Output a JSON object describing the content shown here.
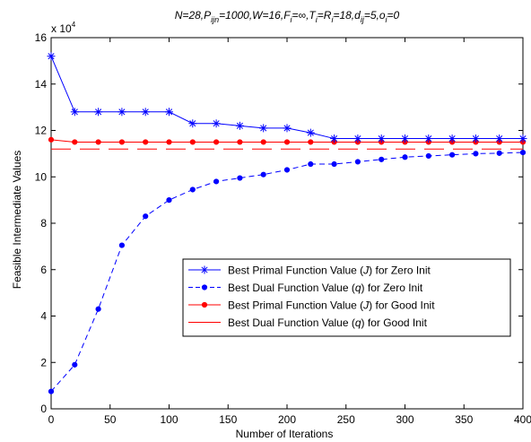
{
  "chart_data": {
    "type": "line",
    "title": "N=28,P_ijn=1000,W=16,F_i=∞,T_i=R_i=18,d_ij=5,o_i=0",
    "title_parts": [
      {
        "t": "N=28,P",
        "sub": false
      },
      {
        "t": "ijn",
        "sub": true
      },
      {
        "t": "=1000,W=16,F",
        "sub": false
      },
      {
        "t": "i",
        "sub": true
      },
      {
        "t": "=∞,T",
        "sub": false
      },
      {
        "t": "i",
        "sub": true
      },
      {
        "t": "=R",
        "sub": false
      },
      {
        "t": "i",
        "sub": true
      },
      {
        "t": "=18,d",
        "sub": false
      },
      {
        "t": "ij",
        "sub": true
      },
      {
        "t": "=5,o",
        "sub": false
      },
      {
        "t": "i",
        "sub": true
      },
      {
        "t": "=0",
        "sub": false
      }
    ],
    "xlabel": "Number of Iterations",
    "ylabel": "Feasible Intermediate Values",
    "y_multiplier": {
      "base": "x 10",
      "exponent": "4"
    },
    "xlim": [
      0,
      400
    ],
    "ylim": [
      0,
      16
    ],
    "xticks": [
      0,
      50,
      100,
      150,
      200,
      250,
      300,
      350,
      400
    ],
    "yticks": [
      0,
      2,
      4,
      6,
      8,
      10,
      12,
      14,
      16
    ],
    "grid": false,
    "legend_position": "lower-right",
    "series": [
      {
        "name": "Best Primal Function Value (J) for Zero Init",
        "legend_parts": [
          "Best Primal Function Value (",
          "J",
          ") for Zero Init"
        ],
        "color": "#0000ff",
        "line": "solid",
        "marker": "star",
        "x": [
          0,
          20,
          40,
          60,
          80,
          100,
          120,
          140,
          160,
          180,
          200,
          220,
          240,
          260,
          280,
          300,
          320,
          340,
          360,
          380,
          400
        ],
        "y": [
          15.2,
          12.8,
          12.8,
          12.8,
          12.8,
          12.8,
          12.3,
          12.3,
          12.2,
          12.1,
          12.1,
          11.9,
          11.65,
          11.65,
          11.65,
          11.65,
          11.65,
          11.65,
          11.65,
          11.65,
          11.65
        ]
      },
      {
        "name": "Best Dual Function Value (q) for Zero Init",
        "legend_parts": [
          "Best Dual Function Value (",
          "q",
          ") for Zero Init"
        ],
        "color": "#0000ff",
        "line": "dashed",
        "marker": "dot",
        "x": [
          0,
          20,
          40,
          60,
          80,
          100,
          120,
          140,
          160,
          180,
          200,
          220,
          240,
          260,
          280,
          300,
          320,
          340,
          360,
          380,
          400
        ],
        "y": [
          0.75,
          1.9,
          4.3,
          7.05,
          8.3,
          9.0,
          9.45,
          9.8,
          9.95,
          10.1,
          10.3,
          10.55,
          10.55,
          10.65,
          10.75,
          10.85,
          10.9,
          10.95,
          11.0,
          11.02,
          11.05
        ]
      },
      {
        "name": "Best Primal Function Value (J) for Good Init",
        "legend_parts": [
          "Best Primal Function Value (",
          "J",
          ") for Good Init"
        ],
        "color": "#ff0000",
        "line": "solid",
        "marker": "dot",
        "x": [
          0,
          20,
          40,
          60,
          80,
          100,
          120,
          140,
          160,
          180,
          200,
          220,
          240,
          260,
          280,
          300,
          320,
          340,
          360,
          380,
          400
        ],
        "y": [
          11.6,
          11.5,
          11.5,
          11.5,
          11.5,
          11.5,
          11.5,
          11.5,
          11.5,
          11.5,
          11.5,
          11.5,
          11.5,
          11.5,
          11.5,
          11.5,
          11.5,
          11.5,
          11.5,
          11.5,
          11.5
        ]
      },
      {
        "name": "Best Dual Function Value (q) for Good Init",
        "legend_parts": [
          "Best Dual Function Value (",
          "q",
          ") for Good Init"
        ],
        "color": "#ff0000",
        "line": "longdash",
        "marker": "none",
        "x": [
          0,
          400
        ],
        "y": [
          11.2,
          11.2
        ]
      }
    ]
  }
}
